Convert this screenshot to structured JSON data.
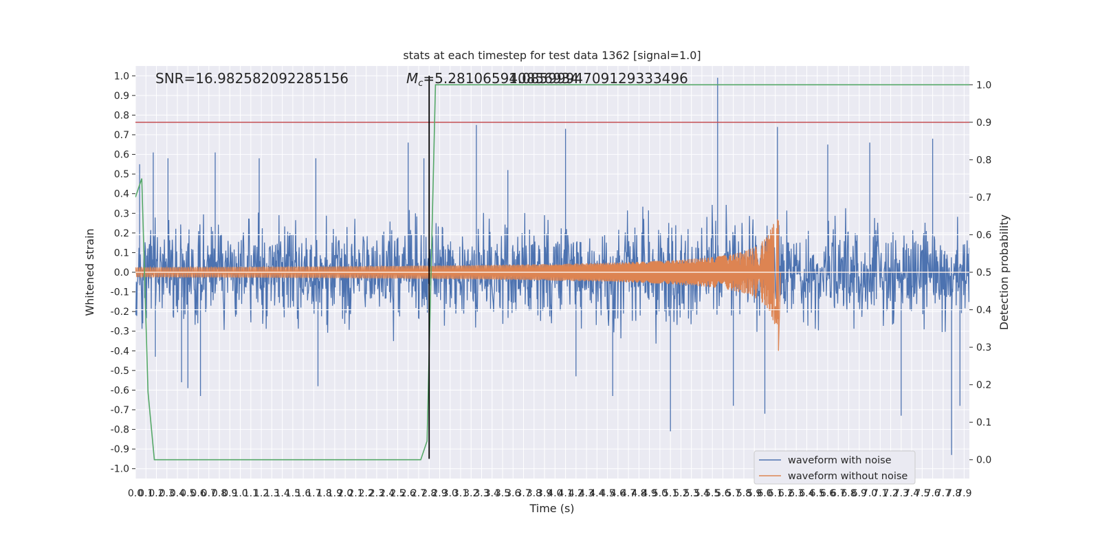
{
  "chart_data": {
    "type": "line",
    "title": "stats at each timestep for test data 1362 [signal=1.0]",
    "xlabel": "Time (s)",
    "ylabel": "Whitened strain",
    "y2label": "Detection probability",
    "xlim": [
      0.0,
      7.95
    ],
    "ylim": [
      -1.05,
      1.05
    ],
    "y2lim": [
      -0.05,
      1.05
    ],
    "xticks": [
      "0.0",
      "0.1",
      "0.2",
      "0.3",
      "0.4",
      "0.5",
      "0.6",
      "0.7",
      "0.8",
      "0.9",
      "1.0",
      "1.1",
      "1.2",
      "1.3",
      "1.4",
      "1.5",
      "1.6",
      "1.7",
      "1.8",
      "1.9",
      "2.0",
      "2.1",
      "2.2",
      "2.3",
      "2.4",
      "2.5",
      "2.6",
      "2.7",
      "2.8",
      "2.9",
      "3.0",
      "3.1",
      "3.2",
      "3.3",
      "3.4",
      "3.5",
      "3.6",
      "3.7",
      "3.8",
      "3.9",
      "4.0",
      "4.1",
      "4.2",
      "4.3",
      "4.4",
      "4.5",
      "4.6",
      "4.7",
      "4.8",
      "4.9",
      "5.0",
      "5.1",
      "5.2",
      "5.3",
      "5.4",
      "5.5",
      "5.6",
      "5.7",
      "5.8",
      "5.9",
      "6.0",
      "6.1",
      "6.2",
      "6.3",
      "6.4",
      "6.5",
      "6.6",
      "6.7",
      "6.8",
      "6.9",
      "7.0",
      "7.1",
      "7.2",
      "7.3",
      "7.4",
      "7.5",
      "7.6",
      "7.7",
      "7.8",
      "7.9"
    ],
    "yticks": [
      "1.0",
      "0.9",
      "0.8",
      "0.7",
      "0.6",
      "0.5",
      "0.4",
      "0.3",
      "0.2",
      "0.1",
      "0.0",
      "-0.1",
      "-0.2",
      "-0.3",
      "-0.4",
      "-0.5",
      "-0.6",
      "-0.7",
      "-0.8",
      "-0.9",
      "-1.0"
    ],
    "y2ticks": [
      "1.0",
      "0.9",
      "0.8",
      "0.7",
      "0.6",
      "0.5",
      "0.4",
      "0.3",
      "0.2",
      "0.1",
      "0.0"
    ],
    "annotations": {
      "snr": "SNR=16.982582092285156",
      "mc_prefix": "M",
      "mc_sub": "c",
      "mc_value": "=5.281065940856934",
      "overlap": "1.0859994709129333496"
    },
    "series": [
      {
        "name": "waveform with noise",
        "color": "#4c72b0",
        "description_values": "noise ~ +/-0.3 amplitude with spikes",
        "spikes": [
          [
            0.04,
            0.55
          ],
          [
            0.07,
            -0.26
          ],
          [
            0.17,
            0.61
          ],
          [
            0.19,
            -0.43
          ],
          [
            0.31,
            0.58
          ],
          [
            0.44,
            -0.56
          ],
          [
            0.5,
            -0.59
          ],
          [
            0.62,
            -0.63
          ],
          [
            0.76,
            0.61
          ],
          [
            1.18,
            0.58
          ],
          [
            1.74,
            -0.58
          ],
          [
            1.72,
            0.58
          ],
          [
            2.6,
            0.66
          ],
          [
            2.75,
            0.58
          ],
          [
            3.25,
            0.75
          ],
          [
            3.55,
            0.52
          ],
          [
            4.1,
            0.73
          ],
          [
            4.2,
            -0.53
          ],
          [
            4.55,
            -0.63
          ],
          [
            5.1,
            -0.81
          ],
          [
            5.55,
            0.99
          ],
          [
            5.7,
            -0.68
          ],
          [
            6.0,
            -0.72
          ],
          [
            6.12,
            0.74
          ],
          [
            6.6,
            0.65
          ],
          [
            7.0,
            0.66
          ],
          [
            7.3,
            -0.73
          ],
          [
            7.6,
            0.68
          ],
          [
            7.78,
            -0.93
          ],
          [
            7.86,
            -0.68
          ]
        ]
      },
      {
        "name": "waveform without noise",
        "color": "#dd8452",
        "chirp_start_amp": 0.025,
        "chirp_end_time": 6.13,
        "chirp_peak": 0.27,
        "chirp_trough": -0.4
      }
    ],
    "detection_probability": {
      "color": "#55a868",
      "points": [
        [
          0.0,
          0.7
        ],
        [
          0.06,
          0.75
        ],
        [
          0.12,
          0.18
        ],
        [
          0.18,
          0.0
        ],
        [
          2.72,
          0.0
        ],
        [
          2.78,
          0.05
        ],
        [
          2.86,
          1.0
        ],
        [
          7.95,
          1.0
        ]
      ]
    },
    "threshold": {
      "color": "#c44e52",
      "value": 0.9
    },
    "marker_time": 2.8,
    "legend": [
      "waveform with noise",
      "waveform without noise"
    ],
    "legend_loc": "lower-right",
    "grid": true,
    "colors": {
      "background": "#eaeaf2",
      "grid": "#ffffff",
      "marker": "#000000"
    }
  }
}
